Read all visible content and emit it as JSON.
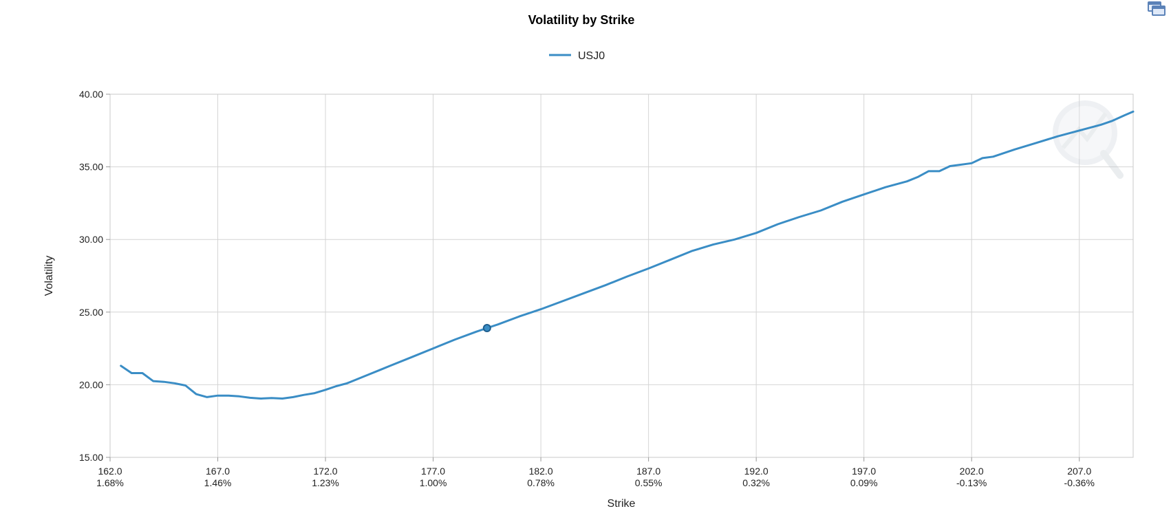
{
  "window": {
    "restore_icon": "restore-window-icon"
  },
  "chart_data": {
    "type": "line",
    "title": "Volatility by Strike",
    "xlabel": "Strike",
    "ylabel": "Volatility",
    "xlim": [
      162.0,
      209.5
    ],
    "ylim": [
      15.0,
      40.0
    ],
    "grid": true,
    "legend": "top-center",
    "watermark_icon": "search-chart-watermark-icon",
    "x_ticks": [
      {
        "value": 162.0,
        "label": "162.0",
        "sublabel": "1.68%"
      },
      {
        "value": 167.0,
        "label": "167.0",
        "sublabel": "1.46%"
      },
      {
        "value": 172.0,
        "label": "172.0",
        "sublabel": "1.23%"
      },
      {
        "value": 177.0,
        "label": "177.0",
        "sublabel": "1.00%"
      },
      {
        "value": 182.0,
        "label": "182.0",
        "sublabel": "0.78%"
      },
      {
        "value": 187.0,
        "label": "187.0",
        "sublabel": "0.55%"
      },
      {
        "value": 192.0,
        "label": "192.0",
        "sublabel": "0.32%"
      },
      {
        "value": 197.0,
        "label": "197.0",
        "sublabel": "0.09%"
      },
      {
        "value": 202.0,
        "label": "202.0",
        "sublabel": "-0.13%"
      },
      {
        "value": 207.0,
        "label": "207.0",
        "sublabel": "-0.36%"
      }
    ],
    "y_ticks": [
      {
        "value": 15.0,
        "label": "15.00"
      },
      {
        "value": 20.0,
        "label": "20.00"
      },
      {
        "value": 25.0,
        "label": "25.00"
      },
      {
        "value": 30.0,
        "label": "30.00"
      },
      {
        "value": 35.0,
        "label": "35.00"
      },
      {
        "value": 40.0,
        "label": "40.00"
      }
    ],
    "series": [
      {
        "name": "USJ0",
        "color": "#3a8dc5",
        "highlight_point": {
          "x": 179.5,
          "y": 23.9,
          "color": "#1f5f8f"
        },
        "points": [
          [
            162.5,
            21.3
          ],
          [
            163.0,
            20.8
          ],
          [
            163.5,
            20.8
          ],
          [
            164.0,
            20.25
          ],
          [
            164.5,
            20.2
          ],
          [
            165.0,
            20.1
          ],
          [
            165.5,
            19.95
          ],
          [
            166.0,
            19.35
          ],
          [
            166.5,
            19.15
          ],
          [
            167.0,
            19.25
          ],
          [
            167.5,
            19.25
          ],
          [
            168.0,
            19.2
          ],
          [
            168.5,
            19.1
          ],
          [
            169.0,
            19.05
          ],
          [
            169.5,
            19.08
          ],
          [
            170.0,
            19.05
          ],
          [
            170.5,
            19.15
          ],
          [
            171.0,
            19.3
          ],
          [
            171.5,
            19.42
          ],
          [
            172.0,
            19.65
          ],
          [
            172.5,
            19.9
          ],
          [
            173.0,
            20.1
          ],
          [
            173.5,
            20.4
          ],
          [
            174.0,
            20.7
          ],
          [
            174.5,
            21.0
          ],
          [
            175.0,
            21.3
          ],
          [
            176.0,
            21.9
          ],
          [
            177.0,
            22.5
          ],
          [
            178.0,
            23.1
          ],
          [
            179.0,
            23.65
          ],
          [
            179.5,
            23.9
          ],
          [
            180.0,
            24.15
          ],
          [
            181.0,
            24.7
          ],
          [
            182.0,
            25.2
          ],
          [
            183.0,
            25.75
          ],
          [
            184.0,
            26.3
          ],
          [
            185.0,
            26.85
          ],
          [
            186.0,
            27.45
          ],
          [
            187.0,
            28.0
          ],
          [
            188.0,
            28.6
          ],
          [
            189.0,
            29.2
          ],
          [
            190.0,
            29.65
          ],
          [
            191.0,
            30.0
          ],
          [
            192.0,
            30.45
          ],
          [
            193.0,
            31.05
          ],
          [
            194.0,
            31.55
          ],
          [
            195.0,
            32.0
          ],
          [
            196.0,
            32.6
          ],
          [
            197.0,
            33.1
          ],
          [
            198.0,
            33.6
          ],
          [
            199.0,
            34.0
          ],
          [
            199.5,
            34.3
          ],
          [
            200.0,
            34.7
          ],
          [
            200.5,
            34.7
          ],
          [
            201.0,
            35.05
          ],
          [
            202.0,
            35.25
          ],
          [
            202.5,
            35.6
          ],
          [
            203.0,
            35.7
          ],
          [
            204.0,
            36.2
          ],
          [
            205.0,
            36.65
          ],
          [
            206.0,
            37.1
          ],
          [
            207.0,
            37.5
          ],
          [
            208.0,
            37.9
          ],
          [
            208.5,
            38.15
          ],
          [
            209.1,
            38.55
          ],
          [
            209.5,
            38.8
          ]
        ]
      }
    ]
  }
}
